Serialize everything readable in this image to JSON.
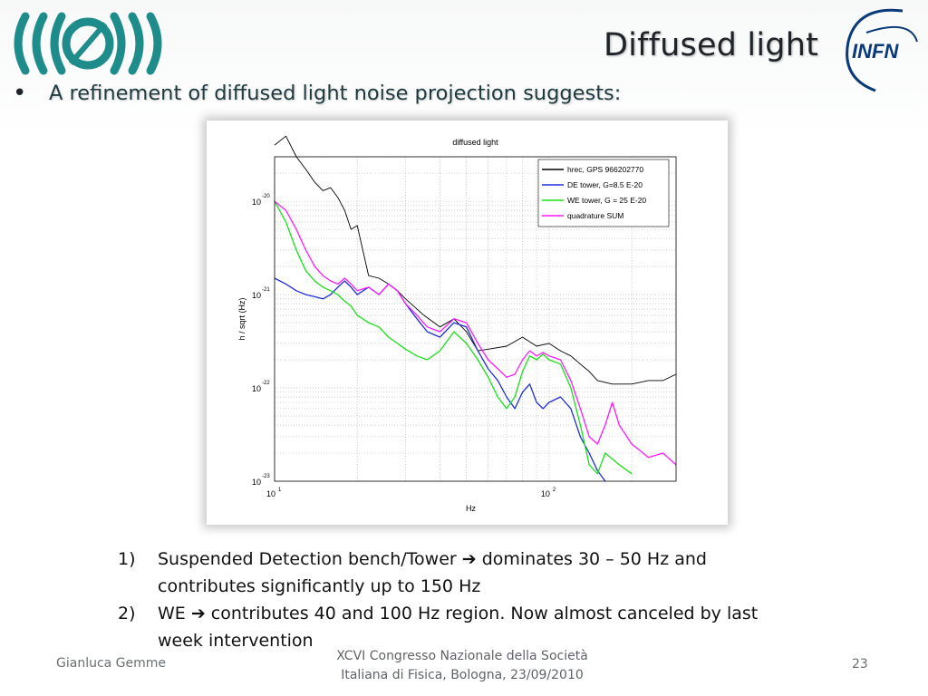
{
  "slide": {
    "title": "Diffused light",
    "bullet": "A refinement of diffused light noise projection suggests:"
  },
  "notes": [
    {
      "num": "1)",
      "before": "Suspended Detection bench/Tower ",
      "after": " dominates 30 – 50 Hz and contributes significantly  up to 150 Hz"
    },
    {
      "num": "2)",
      "before": "WE ",
      "after": " contributes 40 and 100 Hz region. Now almost canceled by last week intervention"
    }
  ],
  "footer": {
    "author": "Gianluca Gemme",
    "conference_line1": "XCVI Congresso Nazionale della Società",
    "conference_line2": "Italiana di Fisica, Bologna, 23/09/2010",
    "page": "23"
  },
  "logos": {
    "left_icon": "virgo-waves-icon",
    "right_icon": "infn-logo-icon",
    "right_text": "INFN",
    "right_color": "#0a3a78",
    "left_color": "#1e8c8a"
  },
  "chart_data": {
    "type": "line",
    "title": "diffused light",
    "xlabel": "Hz",
    "ylabel": "h / sqrt (Hz)",
    "xscale": "log",
    "yscale": "log",
    "xlim": [
      10,
      290
    ],
    "ylim": [
      1e-23,
      3e-20
    ],
    "grid": true,
    "legend_position": "top-right",
    "x_ticks": [
      {
        "base": "10",
        "exp": "1"
      },
      {
        "base": "10",
        "exp": "2"
      }
    ],
    "y_ticks": [
      {
        "base": "10",
        "exp": "-20"
      },
      {
        "base": "10",
        "exp": "-21"
      },
      {
        "base": "10",
        "exp": "-22"
      },
      {
        "base": "10",
        "exp": "-23"
      }
    ],
    "series": [
      {
        "name": "hrec, GPS 966202770",
        "color": "#000000",
        "x": [
          10,
          11,
          12,
          13,
          14,
          15,
          16,
          17,
          18,
          19,
          20,
          22,
          24,
          26,
          28,
          30,
          35,
          40,
          45,
          50,
          55,
          60,
          70,
          80,
          90,
          100,
          110,
          120,
          130,
          140,
          150,
          170,
          200,
          230,
          260,
          290
        ],
        "y": [
          4e-20,
          5e-20,
          3e-20,
          2.2e-20,
          1.6e-20,
          1.3e-20,
          1.4e-20,
          1.1e-20,
          8e-21,
          5e-21,
          5.5e-21,
          1.6e-21,
          1.5e-21,
          1.3e-21,
          1.1e-21,
          9e-22,
          6e-22,
          4.5e-22,
          5.5e-22,
          4e-22,
          2.5e-22,
          2.6e-22,
          2.8e-22,
          3.5e-22,
          2.8e-22,
          3e-22,
          2.5e-22,
          2.2e-22,
          1.8e-22,
          1.5e-22,
          1.2e-22,
          1.1e-22,
          1.1e-22,
          1.2e-22,
          1.2e-22,
          1.4e-22
        ]
      },
      {
        "name": "DE tower, G=8.5 E-20",
        "color": "#1f2fd8",
        "x": [
          10,
          11,
          12,
          13,
          14,
          15,
          16,
          17,
          18,
          19,
          20,
          22,
          24,
          26,
          28,
          30,
          33,
          36,
          40,
          45,
          50,
          55,
          60,
          65,
          70,
          75,
          80,
          85,
          90,
          95,
          100,
          110,
          120,
          130,
          140,
          150,
          160
        ],
        "y": [
          1.5e-21,
          1.3e-21,
          1.1e-21,
          1e-21,
          9.5e-22,
          9e-22,
          1e-21,
          1.2e-21,
          1.4e-21,
          1.2e-21,
          1e-21,
          1.2e-21,
          1e-21,
          1.3e-21,
          1.1e-21,
          8e-22,
          5.5e-22,
          4e-22,
          3.5e-22,
          5e-22,
          4.5e-22,
          2.5e-22,
          1.6e-22,
          1.2e-22,
          8e-23,
          6e-23,
          9e-23,
          1.1e-22,
          7e-23,
          6e-23,
          7e-23,
          8e-23,
          6e-23,
          3e-23,
          2e-23,
          1.3e-23,
          1e-23
        ]
      },
      {
        "name": "WE tower, G = 25 E-20",
        "color": "#18e018",
        "x": [
          10,
          11,
          12,
          13,
          14,
          15,
          16,
          17,
          18,
          19,
          20,
          22,
          24,
          26,
          28,
          30,
          33,
          36,
          40,
          45,
          50,
          55,
          60,
          65,
          70,
          75,
          80,
          85,
          90,
          95,
          100,
          110,
          120,
          130,
          140,
          150,
          160,
          180,
          200
        ],
        "y": [
          1e-20,
          6e-21,
          3e-21,
          1.8e-21,
          1.4e-21,
          1.2e-21,
          1.1e-21,
          1e-21,
          8.5e-22,
          7.5e-22,
          6e-22,
          5e-22,
          4.5e-22,
          3.5e-22,
          3e-22,
          2.6e-22,
          2.2e-22,
          2e-22,
          2.5e-22,
          4e-22,
          3e-22,
          2e-22,
          1.3e-22,
          8e-23,
          6e-23,
          8e-23,
          1.5e-22,
          2.2e-22,
          2e-22,
          2.3e-22,
          2e-22,
          1.8e-22,
          1e-22,
          4e-23,
          1.5e-23,
          1.2e-23,
          2e-23,
          1.5e-23,
          1.2e-23
        ]
      },
      {
        "name": "quadrature SUM",
        "color": "#ff1aff",
        "x": [
          10,
          11,
          12,
          13,
          14,
          15,
          16,
          17,
          18,
          19,
          20,
          22,
          24,
          26,
          28,
          30,
          33,
          36,
          40,
          45,
          50,
          55,
          60,
          65,
          70,
          75,
          80,
          85,
          90,
          95,
          100,
          110,
          120,
          130,
          140,
          150,
          160,
          170,
          180,
          200,
          230,
          260,
          290
        ],
        "y": [
          1e-20,
          8e-21,
          5e-21,
          3e-21,
          2e-21,
          1.6e-21,
          1.4e-21,
          1.3e-21,
          1.5e-21,
          1.3e-21,
          1.1e-21,
          1.2e-21,
          1e-21,
          1.3e-21,
          1.1e-21,
          8e-22,
          6e-22,
          4.5e-22,
          4e-22,
          5.5e-22,
          5e-22,
          3e-22,
          2e-22,
          1.6e-22,
          1.3e-22,
          1.4e-22,
          2e-22,
          2.5e-22,
          2.2e-22,
          2.4e-22,
          2.2e-22,
          2e-22,
          1.2e-22,
          6e-23,
          3e-23,
          2.5e-23,
          4e-23,
          7e-23,
          4e-23,
          2.5e-23,
          1.8e-23,
          2e-23,
          1.5e-23
        ]
      }
    ]
  }
}
